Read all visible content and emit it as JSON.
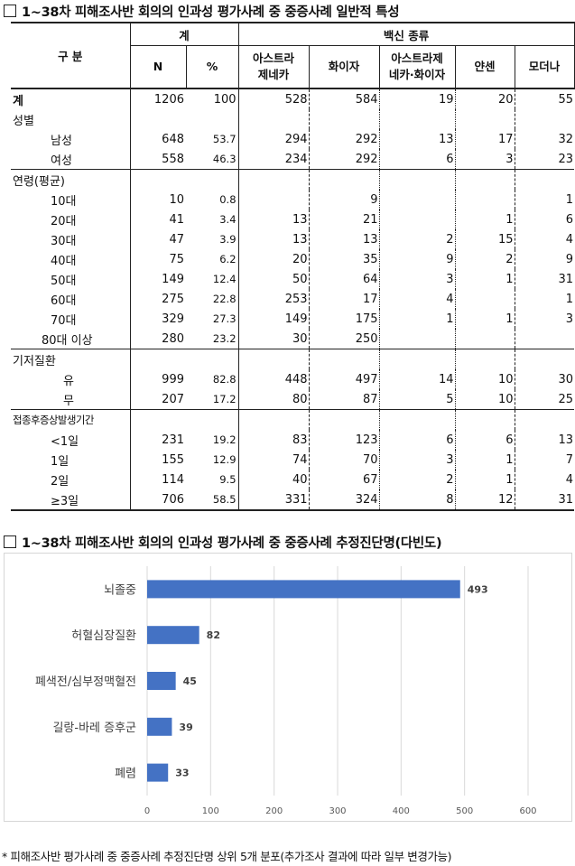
{
  "table_title": "1~38차 피해조사반 회의의 인과성 평가사례 중 중증사례 일반적 특성",
  "chart_title": "1~38차 피해조사반 회의의 인과성 평가사례 중 중증사례 추정진단명(다빈도)",
  "header": {
    "category": "구 분",
    "total": "계",
    "n": "N",
    "pct": "%",
    "vaccine_type": "백신 종류",
    "vaccines": [
      "아스트라\n제네카",
      "화이자",
      "아스트라제\n네카·화이자",
      "얀센",
      "모더나"
    ]
  },
  "rows": [
    {
      "label": "계",
      "kind": "total",
      "n": "1206",
      "pct": "100",
      "v": [
        "528",
        "584",
        "19",
        "20",
        "55"
      ]
    },
    {
      "label": "성별",
      "kind": "group",
      "n": "",
      "pct": "",
      "v": [
        "",
        "",
        "",
        "",
        ""
      ]
    },
    {
      "label": "남성",
      "kind": "sub",
      "n": "648",
      "pct": "53.7",
      "v": [
        "294",
        "292",
        "13",
        "17",
        "32"
      ]
    },
    {
      "label": "여성",
      "kind": "sub",
      "n": "558",
      "pct": "46.3",
      "v": [
        "234",
        "292",
        "6",
        "3",
        "23"
      ]
    },
    {
      "label": "연령(평균)",
      "kind": "group-line",
      "n": "",
      "pct": "",
      "v": [
        "",
        "",
        "",
        "",
        ""
      ]
    },
    {
      "label": "10대",
      "kind": "sub",
      "n": "10",
      "pct": "0.8",
      "v": [
        "",
        "9",
        "",
        "",
        "1"
      ]
    },
    {
      "label": "20대",
      "kind": "sub",
      "n": "41",
      "pct": "3.4",
      "v": [
        "13",
        "21",
        "",
        "1",
        "6"
      ]
    },
    {
      "label": "30대",
      "kind": "sub",
      "n": "47",
      "pct": "3.9",
      "v": [
        "13",
        "13",
        "2",
        "15",
        "4"
      ]
    },
    {
      "label": "40대",
      "kind": "sub",
      "n": "75",
      "pct": "6.2",
      "v": [
        "20",
        "35",
        "9",
        "2",
        "9"
      ]
    },
    {
      "label": "50대",
      "kind": "sub",
      "n": "149",
      "pct": "12.4",
      "v": [
        "50",
        "64",
        "3",
        "1",
        "31"
      ]
    },
    {
      "label": "60대",
      "kind": "sub",
      "n": "275",
      "pct": "22.8",
      "v": [
        "253",
        "17",
        "4",
        "",
        "1"
      ]
    },
    {
      "label": "70대",
      "kind": "sub",
      "n": "329",
      "pct": "27.3",
      "v": [
        "149",
        "175",
        "1",
        "1",
        "3"
      ]
    },
    {
      "label": "80대 이상",
      "kind": "sub2",
      "n": "280",
      "pct": "23.2",
      "v": [
        "30",
        "250",
        "",
        "",
        ""
      ]
    },
    {
      "label": "기저질환",
      "kind": "group-line",
      "n": "",
      "pct": "",
      "v": [
        "",
        "",
        "",
        "",
        ""
      ]
    },
    {
      "label": "유",
      "kind": "sub3",
      "n": "999",
      "pct": "82.8",
      "v": [
        "448",
        "497",
        "14",
        "10",
        "30"
      ]
    },
    {
      "label": "무",
      "kind": "sub3",
      "n": "207",
      "pct": "17.2",
      "v": [
        "80",
        "87",
        "5",
        "10",
        "25"
      ]
    },
    {
      "label": "접종후증상발생기간",
      "kind": "group-line",
      "n": "",
      "pct": "",
      "v": [
        "",
        "",
        "",
        "",
        ""
      ]
    },
    {
      "label": "<1일",
      "kind": "sub",
      "n": "231",
      "pct": "19.2",
      "v": [
        "83",
        "123",
        "6",
        "6",
        "13"
      ]
    },
    {
      "label": "1일",
      "kind": "sub",
      "n": "155",
      "pct": "12.9",
      "v": [
        "74",
        "70",
        "3",
        "1",
        "7"
      ]
    },
    {
      "label": "2일",
      "kind": "sub",
      "n": "114",
      "pct": "9.5",
      "v": [
        "40",
        "67",
        "2",
        "1",
        "4"
      ]
    },
    {
      "label": "≥3일",
      "kind": "sub",
      "n": "706",
      "pct": "58.5",
      "v": [
        "331",
        "324",
        "8",
        "12",
        "31"
      ]
    }
  ],
  "colors": {
    "bar": "#4472c4",
    "grid": "#d9d9d9",
    "axis_text": "#595959",
    "label_text": "#404040"
  },
  "chart_data": {
    "type": "bar",
    "orientation": "horizontal",
    "categories": [
      "뇌졸중",
      "허혈심장질환",
      "폐색전/심부정맥혈전",
      "길랑-바레 증후군",
      "폐렴"
    ],
    "values": [
      493,
      82,
      45,
      39,
      33
    ],
    "xlim": [
      0,
      600
    ],
    "xticks": [
      0,
      100,
      200,
      300,
      400,
      500,
      600
    ],
    "data_labels": true,
    "grid": true
  },
  "footnote": "* 피해조사반 평가사례 중 중증사례 추정진단명 상위 5개 분포(추가조사 결과에 따라 일부 변경가능)"
}
